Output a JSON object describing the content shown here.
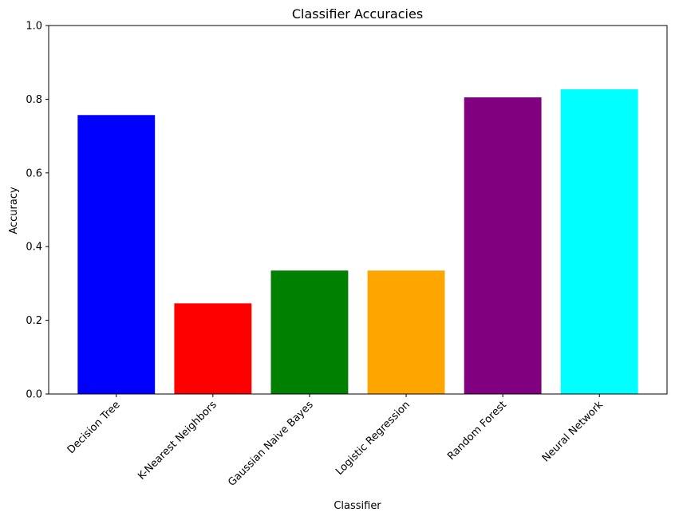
{
  "chart_data": {
    "type": "bar",
    "title": "Classifier Accuracies",
    "xlabel": "Classifier",
    "ylabel": "Accuracy",
    "ylim": [
      0,
      1.0
    ],
    "yticks": [
      "0.0",
      "0.2",
      "0.4",
      "0.6",
      "0.8",
      "1.0"
    ],
    "categories": [
      "Decision Tree",
      "K-Nearest Neighbors",
      "Gaussian Naive Bayes",
      "Logistic Regression",
      "Random Forest",
      "Neural Network"
    ],
    "values": [
      0.757,
      0.246,
      0.335,
      0.335,
      0.805,
      0.827
    ],
    "colors": [
      "#0000ff",
      "#ff0000",
      "#008000",
      "#ffa500",
      "#800080",
      "#00ffff"
    ],
    "grid": false,
    "legend": "none"
  }
}
